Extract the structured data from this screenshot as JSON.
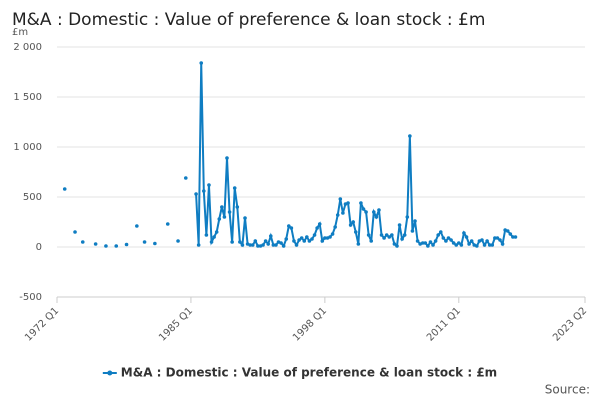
{
  "chart_data": {
    "type": "line",
    "title": "M&A : Domestic : Value of preference & loan stock : £m",
    "y_label": "£m",
    "source": "Source:",
    "xlim": [
      "1972 Q1",
      "2023 Q2"
    ],
    "xticks": [
      "1972 Q1",
      "1985 Q1",
      "1998 Q1",
      "2011 Q1",
      "2023 Q2"
    ],
    "ylim": [
      -500,
      2000
    ],
    "yticks": [
      -500,
      0,
      500,
      {
        "value": 1000,
        "label": "1 000"
      },
      {
        "value": 1500,
        "label": "1 500"
      },
      {
        "value": 2000,
        "label": "2 000"
      }
    ],
    "grid": true,
    "legend": "bottom",
    "x": [
      "1972 Q4",
      "1973 Q2",
      "1973 Q4",
      "1974 Q2",
      "1974 Q3",
      "1975 Q2",
      "1975 Q4",
      "1976 Q2",
      "1976 Q4",
      "1977 Q2",
      "1977 Q4",
      "1978 Q2",
      "1978 Q4",
      "1979 Q2",
      "1979 Q4",
      "1980 Q2",
      "1980 Q3",
      "1981 Q1",
      "1981 Q3",
      "1982 Q2",
      "1982 Q4",
      "1983 Q2",
      "1983 Q4",
      "1984 Q1",
      "1984 Q3",
      "1985 Q1",
      "1985 Q3",
      "1985 Q4",
      "1986 Q1",
      "1986 Q2",
      "1986 Q3",
      "1986 Q4",
      "1987 Q1",
      "1987 Q2",
      "1987 Q3",
      "1987 Q4",
      "1988 Q1",
      "1988 Q2",
      "1988 Q3",
      "1988 Q4",
      "1989 Q1",
      "1989 Q2",
      "1989 Q3",
      "1989 Q4",
      "1990 Q1",
      "1990 Q2",
      "1990 Q3",
      "1990 Q4",
      "1991 Q1",
      "1991 Q2",
      "1991 Q3",
      "1991 Q4",
      "1992 Q1",
      "1992 Q2",
      "1992 Q3",
      "1992 Q4",
      "1993 Q1",
      "1993 Q2",
      "1993 Q3",
      "1993 Q4",
      "1994 Q1",
      "1994 Q2",
      "1994 Q3",
      "1994 Q4",
      "1995 Q1",
      "1995 Q2",
      "1995 Q3",
      "1995 Q4",
      "1996 Q1",
      "1996 Q2",
      "1996 Q3",
      "1996 Q4",
      "1997 Q1",
      "1997 Q2",
      "1997 Q3",
      "1997 Q4",
      "1998 Q1",
      "1998 Q2",
      "1998 Q3",
      "1998 Q4",
      "1999 Q1",
      "1999 Q2",
      "1999 Q3",
      "1999 Q4",
      "2000 Q1",
      "2000 Q2",
      "2000 Q3",
      "2000 Q4",
      "2001 Q1",
      "2001 Q2",
      "2001 Q3",
      "2001 Q4",
      "2002 Q1",
      "2002 Q2",
      "2002 Q3",
      "2002 Q4",
      "2003 Q1",
      "2003 Q2",
      "2003 Q3",
      "2003 Q4",
      "2004 Q1",
      "2004 Q2",
      "2004 Q3",
      "2004 Q4",
      "2005 Q1",
      "2005 Q2",
      "2005 Q3",
      "2005 Q4",
      "2006 Q1",
      "2006 Q2",
      "2006 Q3",
      "2006 Q4",
      "2007 Q1",
      "2007 Q2",
      "2007 Q3",
      "2007 Q4",
      "2008 Q1",
      "2008 Q2",
      "2008 Q3",
      "2008 Q4",
      "2009 Q1",
      "2009 Q2",
      "2009 Q3",
      "2009 Q4",
      "2010 Q1",
      "2010 Q2",
      "2010 Q3",
      "2010 Q4",
      "2011 Q1",
      "2011 Q2",
      "2011 Q3",
      "2011 Q4",
      "2012 Q1",
      "2012 Q2",
      "2012 Q3",
      "2012 Q4",
      "2013 Q1",
      "2013 Q2",
      "2013 Q3",
      "2013 Q4",
      "2014 Q1",
      "2014 Q2",
      "2014 Q3",
      "2014 Q4",
      "2015 Q1",
      "2015 Q2",
      "2015 Q3",
      "2015 Q4",
      "2016 Q1",
      "2016 Q2",
      "2016 Q3"
    ],
    "series": [
      {
        "name": "M&A : Domestic : Value of preference & loan stock : £m",
        "color": "#0f7dc2",
        "values": [
          580,
          null,
          150,
          null,
          50,
          null,
          30,
          null,
          10,
          null,
          10,
          null,
          25,
          null,
          210,
          null,
          50,
          null,
          35,
          null,
          230,
          null,
          60,
          null,
          690,
          null,
          530,
          20,
          1840,
          560,
          120,
          620,
          50,
          100,
          150,
          280,
          400,
          300,
          890,
          350,
          50,
          590,
          400,
          50,
          20,
          290,
          30,
          20,
          20,
          60,
          10,
          10,
          20,
          60,
          30,
          110,
          20,
          20,
          50,
          40,
          10,
          80,
          210,
          190,
          60,
          20,
          70,
          90,
          60,
          100,
          60,
          80,
          120,
          190,
          230,
          60,
          90,
          90,
          100,
          130,
          200,
          320,
          480,
          340,
          430,
          440,
          220,
          250,
          150,
          30,
          440,
          380,
          350,
          120,
          60,
          350,
          300,
          370,
          120,
          90,
          120,
          100,
          120,
          30,
          10,
          220,
          80,
          120,
          300,
          1110,
          160,
          260,
          60,
          30,
          40,
          40,
          10,
          50,
          20,
          60,
          120,
          150,
          90,
          60,
          90,
          70,
          40,
          20,
          40,
          20,
          140,
          100,
          30,
          60,
          20,
          10,
          60,
          70,
          20,
          60,
          20,
          20,
          90,
          90,
          70,
          30,
          170,
          160,
          130,
          100,
          100
        ]
      }
    ]
  }
}
